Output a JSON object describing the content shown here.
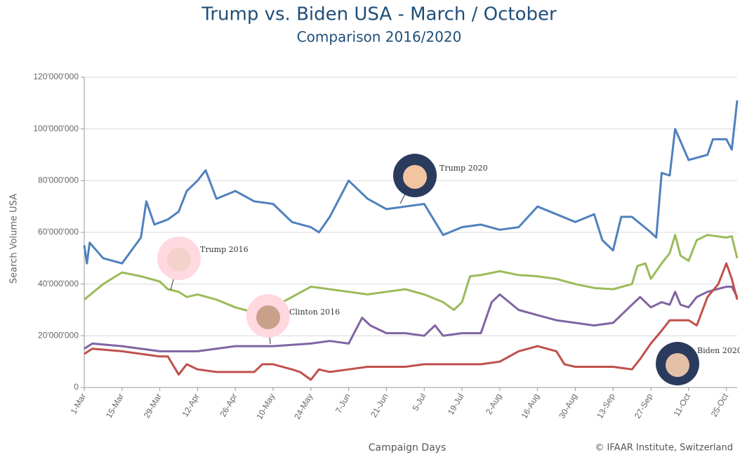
{
  "chart_data": {
    "type": "line",
    "title": "Trump vs. Biden USA - March / October",
    "subtitle": "Comparison 2016/2020",
    "x_label": "Campaign Days",
    "y_label": "Search Volume USA",
    "source": "© IFAAR Institute, Switzerland",
    "grid": true,
    "xlim": [
      0,
      242
    ],
    "xticks": [
      {
        "value": 0,
        "label": "1-Mar"
      },
      {
        "value": 14,
        "label": "15-Mar"
      },
      {
        "value": 28,
        "label": "29-Mar"
      },
      {
        "value": 42,
        "label": "12-Apr"
      },
      {
        "value": 56,
        "label": "26-Apr"
      },
      {
        "value": 70,
        "label": "10-May"
      },
      {
        "value": 84,
        "label": "24-May"
      },
      {
        "value": 98,
        "label": "7-Jun"
      },
      {
        "value": 112,
        "label": "21-Jun"
      },
      {
        "value": 126,
        "label": "5-Jul"
      },
      {
        "value": 140,
        "label": "19-Jul"
      },
      {
        "value": 154,
        "label": "2-Aug"
      },
      {
        "value": 168,
        "label": "16-Aug"
      },
      {
        "value": 182,
        "label": "30-Aug"
      },
      {
        "value": 196,
        "label": "13-Sep"
      },
      {
        "value": 210,
        "label": "27-Sep"
      },
      {
        "value": 224,
        "label": "11-Oct"
      },
      {
        "value": 238,
        "label": "25-Oct"
      }
    ],
    "ylim": [
      0,
      120000000
    ],
    "yticks": [
      0,
      {
        "value": 20000000,
        "label": "20'000'000"
      },
      {
        "value": 40000000,
        "label": "40'000'000"
      },
      {
        "value": 60000000,
        "label": "60'000'000"
      },
      {
        "value": 80000000,
        "label": "80'000'000"
      },
      {
        "value": 100000000,
        "label": "100'000'000"
      },
      {
        "value": 120000000,
        "label": "120'000'000"
      }
    ],
    "series": [
      {
        "name": "Trump 2020",
        "color": "#4f81bd",
        "x": [
          0,
          1,
          2,
          7,
          14,
          21,
          23,
          26,
          31,
          35,
          38,
          42,
          45,
          49,
          56,
          63,
          70,
          77,
          84,
          87,
          91,
          98,
          105,
          112,
          119,
          126,
          133,
          140,
          147,
          154,
          161,
          168,
          175,
          182,
          189,
          192,
          196,
          199,
          203,
          210,
          212,
          214,
          217,
          219,
          224,
          231,
          233,
          238,
          240,
          242
        ],
        "values": [
          55000000,
          48000000,
          56000000,
          50000000,
          48000000,
          58000000,
          72000000,
          63000000,
          65000000,
          68000000,
          76000000,
          80000000,
          84000000,
          73000000,
          76000000,
          72000000,
          71000000,
          64000000,
          62000000,
          60000000,
          66000000,
          80000000,
          73000000,
          69000000,
          70000000,
          71000000,
          59000000,
          62000000,
          63000000,
          61000000,
          62000000,
          70000000,
          67000000,
          64000000,
          67000000,
          57000000,
          53000000,
          66000000,
          66000000,
          60000000,
          58000000,
          83000000,
          82000000,
          100000000,
          88000000,
          90000000,
          96000000,
          96000000,
          92000000,
          111000000
        ]
      },
      {
        "name": "Trump 2016",
        "color": "#9bbb59",
        "x": [
          0,
          7,
          14,
          21,
          28,
          31,
          35,
          38,
          42,
          49,
          56,
          63,
          66,
          70,
          77,
          84,
          91,
          98,
          105,
          112,
          119,
          126,
          133,
          137,
          140,
          143,
          147,
          154,
          161,
          168,
          175,
          182,
          189,
          196,
          203,
          205,
          208,
          210,
          214,
          217,
          219,
          221,
          224,
          227,
          231,
          238,
          240,
          242
        ],
        "values": [
          34000000,
          40000000,
          44500000,
          43000000,
          41000000,
          38000000,
          37000000,
          35000000,
          36000000,
          34000000,
          31000000,
          29000000,
          32000000,
          31000000,
          35000000,
          39000000,
          38000000,
          37000000,
          36000000,
          37000000,
          38000000,
          36000000,
          33000000,
          30000000,
          33000000,
          43000000,
          43500000,
          45000000,
          43500000,
          43000000,
          42000000,
          40000000,
          38500000,
          38000000,
          40000000,
          47000000,
          48000000,
          42000000,
          48000000,
          52000000,
          59000000,
          51000000,
          49000000,
          57000000,
          59000000,
          58000000,
          58500000,
          50000000
        ]
      },
      {
        "name": "Clinton 2016",
        "color": "#8064a2",
        "x": [
          0,
          3,
          14,
          28,
          42,
          56,
          70,
          84,
          91,
          98,
          103,
          106,
          112,
          119,
          126,
          130,
          133,
          140,
          147,
          151,
          154,
          161,
          168,
          175,
          182,
          189,
          196,
          203,
          206,
          210,
          214,
          217,
          219,
          221,
          224,
          227,
          231,
          238,
          240,
          242
        ],
        "values": [
          15000000,
          17000000,
          16000000,
          14000000,
          14000000,
          16000000,
          16000000,
          17000000,
          18000000,
          17000000,
          27000000,
          24000000,
          21000000,
          21000000,
          20000000,
          24000000,
          20000000,
          21000000,
          21000000,
          33000000,
          36000000,
          30000000,
          28000000,
          26000000,
          25000000,
          24000000,
          25000000,
          32000000,
          35000000,
          31000000,
          33000000,
          32000000,
          37000000,
          32000000,
          31000000,
          35000000,
          37000000,
          39000000,
          39000000,
          35000000
        ]
      },
      {
        "name": "Biden 2020",
        "color": "#c0504d",
        "x": [
          0,
          3,
          14,
          28,
          31,
          35,
          38,
          42,
          49,
          56,
          63,
          66,
          70,
          77,
          80,
          84,
          87,
          91,
          98,
          105,
          112,
          119,
          126,
          133,
          140,
          147,
          154,
          161,
          168,
          175,
          178,
          182,
          189,
          196,
          203,
          206,
          210,
          214,
          217,
          224,
          227,
          231,
          235,
          238,
          240,
          242
        ],
        "values": [
          13000000,
          15000000,
          14000000,
          12000000,
          12000000,
          5000000,
          9000000,
          7000000,
          6000000,
          6000000,
          6000000,
          9000000,
          9000000,
          7000000,
          6000000,
          3000000,
          7000000,
          6000000,
          7000000,
          8000000,
          8000000,
          8000000,
          9000000,
          9000000,
          9000000,
          9000000,
          10000000,
          14000000,
          16000000,
          14000000,
          9000000,
          8000000,
          8000000,
          8000000,
          7000000,
          11000000,
          17000000,
          22000000,
          26000000,
          26000000,
          24000000,
          35000000,
          40000000,
          48000000,
          42000000,
          34000000
        ]
      }
    ]
  }
}
